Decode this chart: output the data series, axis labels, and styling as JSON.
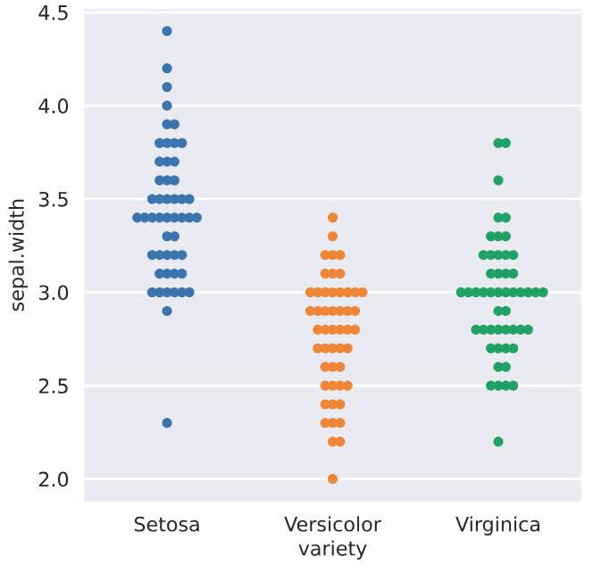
{
  "chart_data": {
    "type": "scatter",
    "xlabel": "variety",
    "ylabel": "sepal.width",
    "categories": [
      "Setosa",
      "Versicolor",
      "Virginica"
    ],
    "ylim": [
      1.88,
      4.52
    ],
    "yticks": [
      {
        "value": 2.0,
        "label": "2.0"
      },
      {
        "value": 2.5,
        "label": "2.5"
      },
      {
        "value": 3.0,
        "label": "3.0"
      },
      {
        "value": 3.5,
        "label": "3.5"
      },
      {
        "value": 4.0,
        "label": "4.0"
      },
      {
        "value": 4.5,
        "label": "4.5"
      }
    ],
    "grid": "y",
    "marker": "circle",
    "legend": false,
    "series": [
      {
        "color": "#3b75af",
        "x": [
          "Setosa",
          "Setosa",
          "Setosa",
          "Setosa",
          "Setosa",
          "Setosa",
          "Setosa",
          "Setosa",
          "Setosa",
          "Setosa",
          "Setosa",
          "Setosa",
          "Setosa",
          "Setosa",
          "Setosa",
          "Setosa",
          "Setosa",
          "Setosa",
          "Setosa",
          "Setosa",
          "Setosa",
          "Setosa",
          "Setosa",
          "Setosa",
          "Setosa",
          "Setosa",
          "Setosa",
          "Setosa",
          "Setosa",
          "Setosa",
          "Setosa",
          "Setosa",
          "Setosa",
          "Setosa",
          "Setosa",
          "Setosa",
          "Setosa",
          "Setosa",
          "Setosa",
          "Setosa",
          "Setosa",
          "Setosa",
          "Setosa",
          "Setosa",
          "Setosa",
          "Setosa",
          "Setosa",
          "Setosa",
          "Setosa",
          "Setosa"
        ],
        "values": [
          3.5,
          3.0,
          3.2,
          3.1,
          3.6,
          3.9,
          3.4,
          3.4,
          2.9,
          3.1,
          3.7,
          3.4,
          3.0,
          3.0,
          4.0,
          4.4,
          3.9,
          3.5,
          3.8,
          3.8,
          3.4,
          3.7,
          3.6,
          3.3,
          3.4,
          3.0,
          3.4,
          3.5,
          3.4,
          3.2,
          3.1,
          3.4,
          4.1,
          4.2,
          3.1,
          3.2,
          3.5,
          3.6,
          3.0,
          3.4,
          3.5,
          2.3,
          3.2,
          3.5,
          3.8,
          3.0,
          3.8,
          3.2,
          3.7,
          3.3
        ]
      },
      {
        "color": "#ef8636",
        "x": [
          "Versicolor",
          "Versicolor",
          "Versicolor",
          "Versicolor",
          "Versicolor",
          "Versicolor",
          "Versicolor",
          "Versicolor",
          "Versicolor",
          "Versicolor",
          "Versicolor",
          "Versicolor",
          "Versicolor",
          "Versicolor",
          "Versicolor",
          "Versicolor",
          "Versicolor",
          "Versicolor",
          "Versicolor",
          "Versicolor",
          "Versicolor",
          "Versicolor",
          "Versicolor",
          "Versicolor",
          "Versicolor",
          "Versicolor",
          "Versicolor",
          "Versicolor",
          "Versicolor",
          "Versicolor",
          "Versicolor",
          "Versicolor",
          "Versicolor",
          "Versicolor",
          "Versicolor",
          "Versicolor",
          "Versicolor",
          "Versicolor",
          "Versicolor",
          "Versicolor",
          "Versicolor",
          "Versicolor",
          "Versicolor",
          "Versicolor",
          "Versicolor",
          "Versicolor",
          "Versicolor",
          "Versicolor",
          "Versicolor",
          "Versicolor"
        ],
        "values": [
          3.2,
          3.2,
          3.1,
          2.3,
          2.8,
          2.8,
          3.3,
          2.4,
          2.9,
          2.7,
          2.0,
          3.0,
          2.2,
          2.9,
          2.9,
          3.1,
          3.0,
          2.7,
          2.2,
          2.5,
          3.2,
          2.8,
          2.5,
          2.8,
          2.9,
          3.0,
          2.8,
          3.0,
          2.9,
          2.6,
          2.4,
          2.4,
          2.7,
          2.7,
          3.0,
          3.4,
          3.1,
          2.3,
          3.0,
          2.5,
          2.6,
          3.0,
          2.6,
          2.3,
          2.7,
          3.0,
          2.9,
          2.9,
          2.5,
          2.8
        ]
      },
      {
        "color": "#20a264",
        "x": [
          "Virginica",
          "Virginica",
          "Virginica",
          "Virginica",
          "Virginica",
          "Virginica",
          "Virginica",
          "Virginica",
          "Virginica",
          "Virginica",
          "Virginica",
          "Virginica",
          "Virginica",
          "Virginica",
          "Virginica",
          "Virginica",
          "Virginica",
          "Virginica",
          "Virginica",
          "Virginica",
          "Virginica",
          "Virginica",
          "Virginica",
          "Virginica",
          "Virginica",
          "Virginica",
          "Virginica",
          "Virginica",
          "Virginica",
          "Virginica",
          "Virginica",
          "Virginica",
          "Virginica",
          "Virginica",
          "Virginica",
          "Virginica",
          "Virginica",
          "Virginica",
          "Virginica",
          "Virginica",
          "Virginica",
          "Virginica",
          "Virginica",
          "Virginica",
          "Virginica",
          "Virginica",
          "Virginica",
          "Virginica",
          "Virginica",
          "Virginica"
        ],
        "values": [
          3.3,
          2.7,
          3.0,
          2.9,
          3.0,
          3.0,
          2.5,
          2.9,
          2.5,
          3.6,
          3.2,
          2.7,
          3.0,
          2.5,
          2.8,
          3.2,
          3.0,
          3.8,
          2.6,
          2.2,
          3.2,
          2.8,
          2.8,
          2.7,
          3.3,
          3.2,
          2.8,
          3.0,
          2.8,
          3.0,
          2.8,
          3.8,
          2.8,
          2.8,
          2.6,
          3.0,
          3.4,
          3.1,
          3.0,
          3.1,
          3.1,
          3.1,
          2.7,
          3.2,
          3.3,
          3.0,
          2.5,
          3.0,
          3.4,
          3.0
        ]
      }
    ]
  }
}
